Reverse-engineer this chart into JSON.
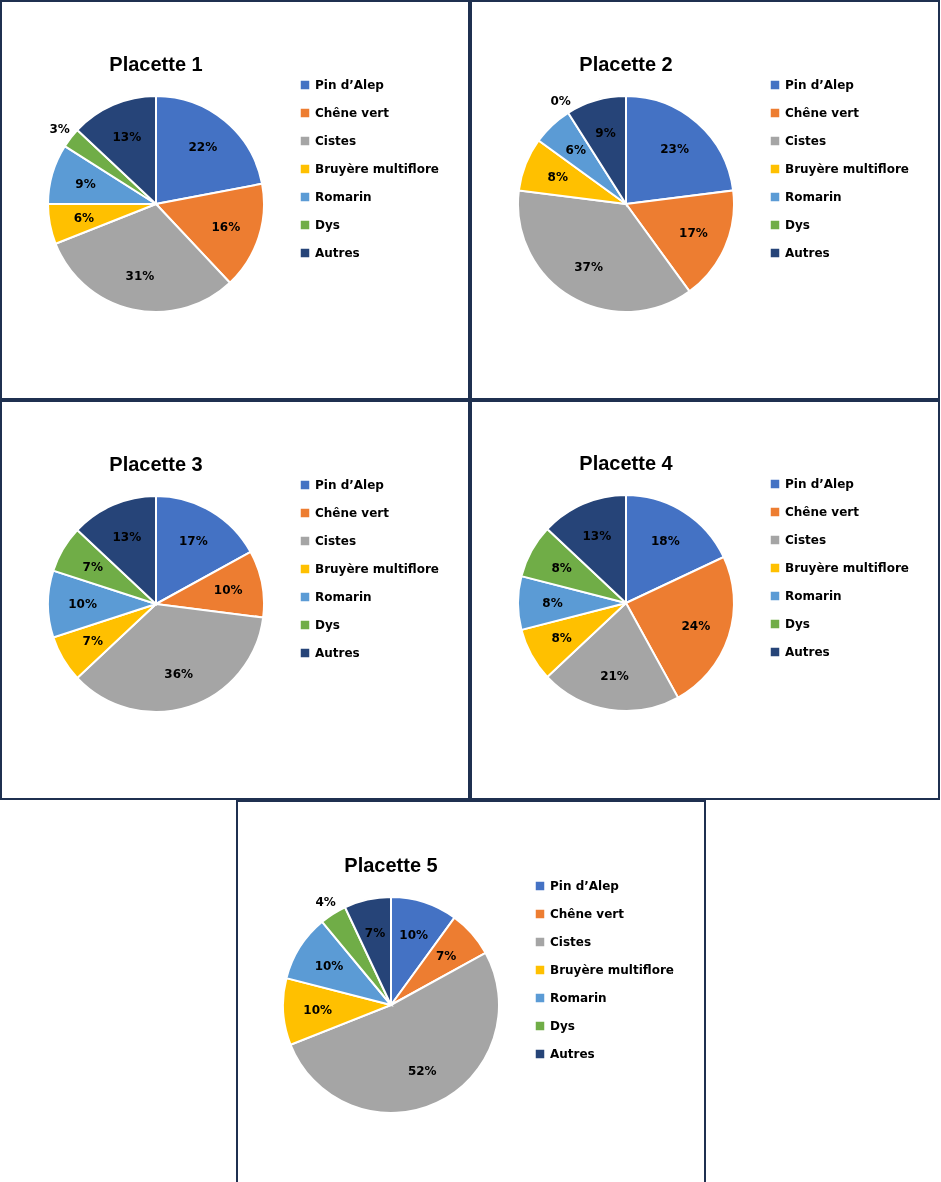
{
  "chart_data": [
    {
      "type": "pie",
      "title": "Placette 1",
      "categories": [
        "Pin d’Alep",
        "Chêne vert",
        "Cistes",
        "Bruyère multiflore",
        "Romarin",
        "Dys",
        "Autres"
      ],
      "values": [
        22,
        16,
        31,
        6,
        9,
        3,
        13
      ],
      "value_labels": [
        "22%",
        "16%",
        "31%",
        "6%",
        "9%",
        "3%",
        "13%"
      ],
      "colors": [
        "#4472c4",
        "#ed7d31",
        "#a5a5a5",
        "#ffc000",
        "#5b9bd5",
        "#70ad47",
        "#264478"
      ],
      "legend": "right"
    },
    {
      "type": "pie",
      "title": "Placette 2",
      "categories": [
        "Pin d’Alep",
        "Chêne vert",
        "Cistes",
        "Bruyère multiflore",
        "Romarin",
        "Dys",
        "Autres"
      ],
      "values": [
        23,
        17,
        37,
        8,
        6,
        0,
        9
      ],
      "value_labels": [
        "23%",
        "17%",
        "37%",
        "8%",
        "6%",
        "0%",
        "9%"
      ],
      "colors": [
        "#4472c4",
        "#ed7d31",
        "#a5a5a5",
        "#ffc000",
        "#5b9bd5",
        "#70ad47",
        "#264478"
      ],
      "legend": "right"
    },
    {
      "type": "pie",
      "title": "Placette 3",
      "categories": [
        "Pin d’Alep",
        "Chêne vert",
        "Cistes",
        "Bruyère multiflore",
        "Romarin",
        "Dys",
        "Autres"
      ],
      "values": [
        17,
        10,
        36,
        7,
        10,
        7,
        13
      ],
      "value_labels": [
        "17%",
        "10%",
        "36%",
        "7%",
        "10%",
        "7%",
        "13%"
      ],
      "colors": [
        "#4472c4",
        "#ed7d31",
        "#a5a5a5",
        "#ffc000",
        "#5b9bd5",
        "#70ad47",
        "#264478"
      ],
      "legend": "right"
    },
    {
      "type": "pie",
      "title": "Placette 4",
      "categories": [
        "Pin d’Alep",
        "Chêne vert",
        "Cistes",
        "Bruyère multiflore",
        "Romarin",
        "Dys",
        "Autres"
      ],
      "values": [
        18,
        24,
        21,
        8,
        8,
        8,
        13
      ],
      "value_labels": [
        "18%",
        "24%",
        "21%",
        "8%",
        "8%",
        "8%",
        "13%"
      ],
      "colors": [
        "#4472c4",
        "#ed7d31",
        "#a5a5a5",
        "#ffc000",
        "#5b9bd5",
        "#70ad47",
        "#264478"
      ],
      "legend": "right"
    },
    {
      "type": "pie",
      "title": "Placette 5",
      "categories": [
        "Pin d’Alep",
        "Chêne vert",
        "Cistes",
        "Bruyère multiflore",
        "Romarin",
        "Dys",
        "Autres"
      ],
      "values": [
        10,
        7,
        52,
        10,
        10,
        4,
        7
      ],
      "value_labels": [
        "10%",
        "7%",
        "52%",
        "10%",
        "10%",
        "4%",
        "7%"
      ],
      "colors": [
        "#4472c4",
        "#ed7d31",
        "#a5a5a5",
        "#ffc000",
        "#5b9bd5",
        "#70ad47",
        "#264478"
      ],
      "legend": "right"
    }
  ]
}
